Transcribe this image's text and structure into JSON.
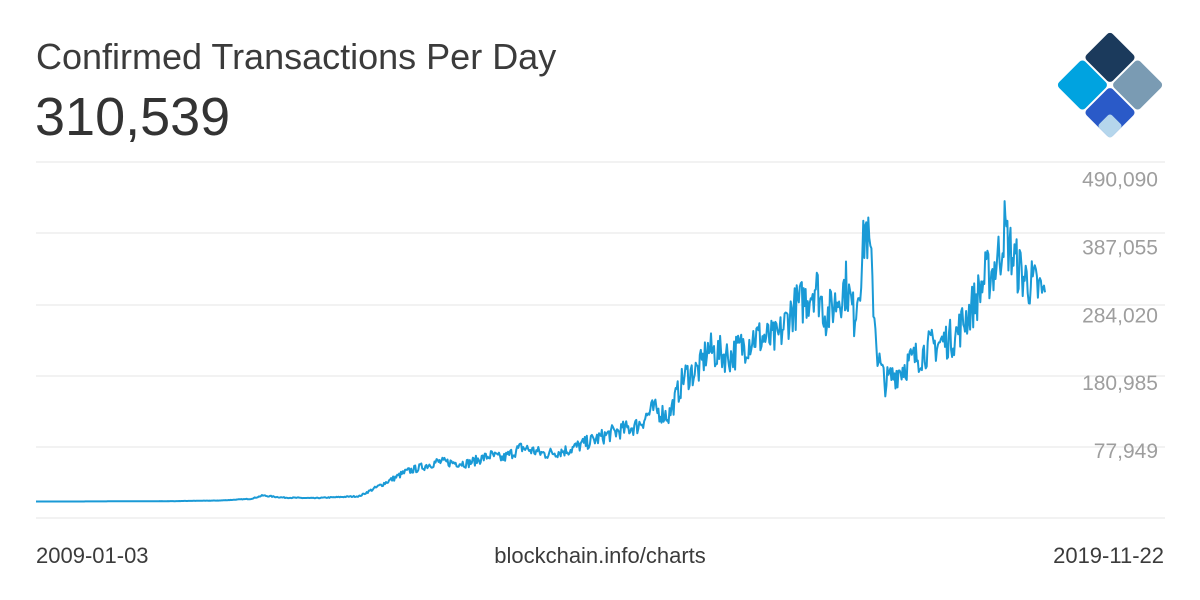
{
  "header": {
    "title": "Confirmed Transactions Per Day",
    "headline_value": "310,539"
  },
  "logo": {
    "icon": "blockchain-logo-icon",
    "colors": [
      "#1b3a5c",
      "#7a9bb3",
      "#2a5ac8",
      "#00a3e0",
      "#b5d6ec"
    ]
  },
  "footer": {
    "start_date": "2009-01-03",
    "source": "blockchain.info/charts",
    "end_date": "2019-11-22"
  },
  "colors": {
    "line": "#1a9ad6",
    "grid": "#e4e4e4",
    "tick_text": "#9e9e9e",
    "title_text": "#3b3b3b"
  },
  "chart_data": {
    "type": "line",
    "title": "Confirmed Transactions Per Day",
    "xlabel": "",
    "ylabel": "",
    "xlim": [
      "2009-01-03",
      "2019-11-22"
    ],
    "ylim": [
      -25086,
      515000
    ],
    "y_ticks": [
      77949,
      180985,
      284020,
      387055,
      490090
    ],
    "y_tick_labels": [
      "77,949",
      "180,985",
      "284,020",
      "387,055",
      "490,090"
    ],
    "grid": "horizontal",
    "y_axis_position": "right",
    "series": [
      {
        "x": [
          "2009-01-03",
          "2009-07-01",
          "2010-01-01",
          "2010-07-01",
          "2011-01-01",
          "2011-05-01",
          "2011-06-15",
          "2011-09-01",
          "2012-01-01",
          "2012-07-01",
          "2013-01-01",
          "2013-03-01",
          "2013-05-01",
          "2013-09-01",
          "2013-12-01",
          "2014-01-15",
          "2014-04-01",
          "2014-07-01",
          "2014-10-01",
          "2015-01-01",
          "2015-04-01",
          "2015-07-01",
          "2015-09-01",
          "2015-11-01",
          "2016-01-01",
          "2016-03-01",
          "2016-04-01",
          "2016-07-01",
          "2016-10-01",
          "2017-01-01",
          "2017-03-01",
          "2017-05-01",
          "2017-06-01",
          "2017-07-15",
          "2017-08-15",
          "2017-10-01",
          "2017-11-01",
          "2017-12-01",
          "2017-12-15",
          "2018-01-01",
          "2018-02-01",
          "2018-03-01",
          "2018-06-01",
          "2018-09-01",
          "2018-12-01",
          "2019-01-01",
          "2019-02-01",
          "2019-03-01",
          "2019-04-01",
          "2019-05-01",
          "2019-06-01",
          "2019-06-15",
          "2019-07-01",
          "2019-08-01",
          "2019-09-01",
          "2019-10-01",
          "2019-11-01",
          "2019-11-22"
        ],
        "y": [
          0,
          0,
          300,
          500,
          1500,
          4000,
          9000,
          6000,
          5000,
          8000,
          45000,
          52000,
          60000,
          58000,
          70000,
          65000,
          82000,
          72000,
          78000,
          92000,
          105000,
          115000,
          140000,
          130000,
          190000,
          200000,
          230000,
          220000,
          250000,
          245000,
          290000,
          310000,
          330000,
          280000,
          300000,
          330000,
          280000,
          360000,
          420000,
          380000,
          220000,
          180000,
          210000,
          235000,
          250000,
          270000,
          290000,
          310000,
          340000,
          350000,
          380000,
          420000,
          390000,
          360000,
          340000,
          330000,
          320000,
          310539
        ]
      }
    ]
  }
}
